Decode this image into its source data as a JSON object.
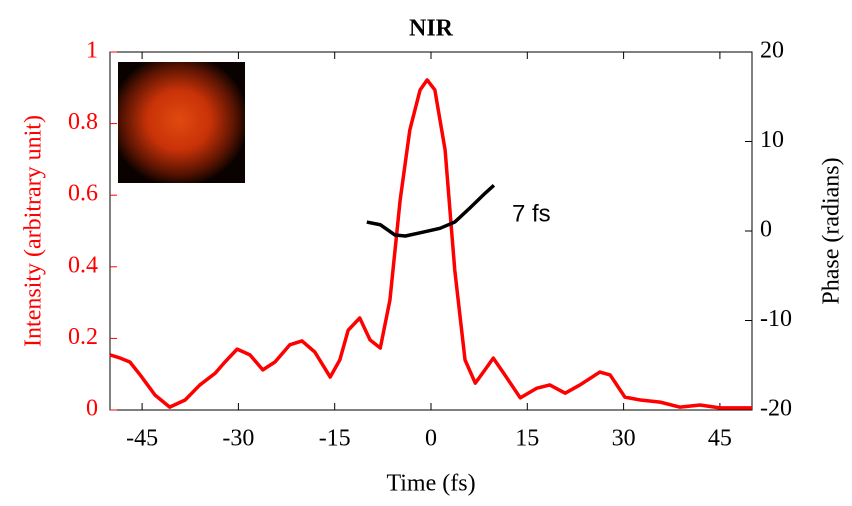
{
  "chart_data": {
    "type": "line",
    "title": "NIR",
    "xlabel": "Time (fs)",
    "ylabel": "Intensity (arbitrary unit)",
    "y2label": "Phase (radians)",
    "annotation": "7 fs",
    "xlim": [
      -50,
      50
    ],
    "xticks": [
      -45,
      -30,
      -15,
      0,
      15,
      30,
      45
    ],
    "ylim": [
      0,
      1
    ],
    "yticks": [
      0,
      0.2,
      0.4,
      0.6,
      0.8,
      1
    ],
    "y2lim": [
      -20,
      20
    ],
    "y2ticks": [
      -20,
      -10,
      0,
      10,
      20
    ],
    "series": [
      {
        "color": "#ff0000",
        "axis": "y",
        "x": [
          -50,
          -48.4,
          -46.9,
          -45.3,
          -43,
          -40.7,
          -38.3,
          -36,
          -33.6,
          -32.1,
          -30.2,
          -28.2,
          -26.2,
          -24.3,
          -22,
          -20.1,
          -18.1,
          -15.7,
          -14.2,
          -12.9,
          -11.1,
          -9.5,
          -7.9,
          -6.4,
          -4.8,
          -3.3,
          -1.7,
          -0.6,
          0.6,
          2.2,
          3.7,
          5.3,
          6.9,
          8.4,
          9.7,
          11.5,
          13.9,
          16.5,
          18.5,
          20.9,
          23.2,
          26.3,
          27.9,
          30.2,
          32.6,
          35.7,
          38.8,
          41.9,
          45,
          50
        ],
        "values": [
          0.154,
          0.145,
          0.134,
          0.098,
          0.042,
          0.008,
          0.028,
          0.07,
          0.103,
          0.134,
          0.17,
          0.154,
          0.112,
          0.134,
          0.182,
          0.193,
          0.162,
          0.092,
          0.14,
          0.223,
          0.257,
          0.196,
          0.173,
          0.307,
          0.587,
          0.782,
          0.894,
          0.922,
          0.894,
          0.726,
          0.391,
          0.14,
          0.075,
          0.112,
          0.145,
          0.098,
          0.034,
          0.061,
          0.07,
          0.047,
          0.07,
          0.106,
          0.098,
          0.036,
          0.028,
          0.022,
          0.008,
          0.014,
          0.006,
          0.006
        ]
      },
      {
        "color": "#000000",
        "axis": "y2",
        "x": [
          -10,
          -7.9,
          -5.6,
          -4.0,
          -1.7,
          1.4,
          3.7,
          6.1,
          8.4,
          9.8
        ],
        "values": [
          1.0,
          0.7,
          -0.45,
          -0.56,
          -0.2,
          0.3,
          1.0,
          2.6,
          4.2,
          5.1
        ]
      }
    ]
  }
}
